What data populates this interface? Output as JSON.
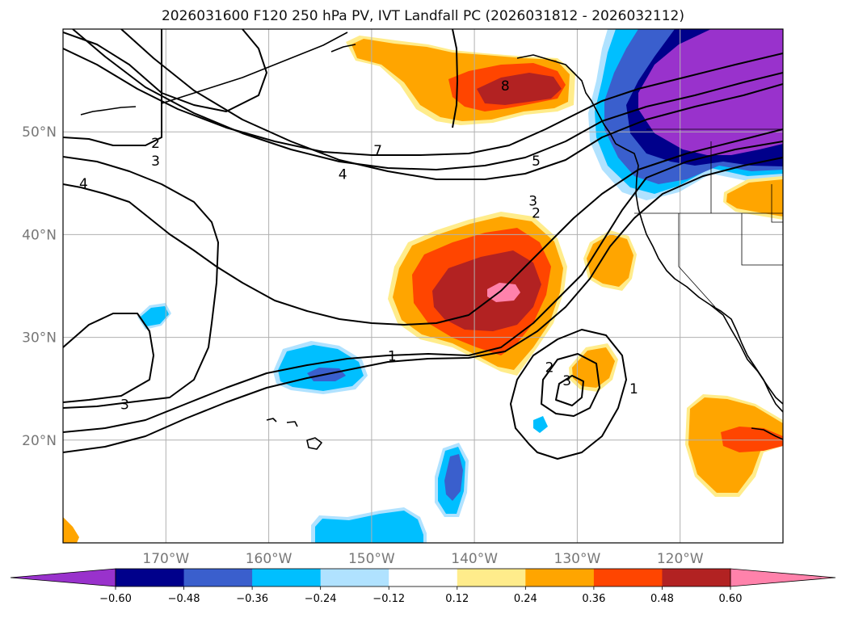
{
  "title": "2026031600 F120 250 hPa PV, IVT Landfall PC (2026031812 - 2026032112)",
  "map": {
    "lon_range": [
      -180,
      -110
    ],
    "lat_range": [
      10,
      60
    ],
    "lat_ticks": [
      {
        "value": 50,
        "label": "50°N"
      },
      {
        "value": 40,
        "label": "40°N"
      },
      {
        "value": 30,
        "label": "30°N"
      },
      {
        "value": 20,
        "label": "20°N"
      }
    ],
    "lon_ticks": [
      {
        "value": -170,
        "label": "170°W"
      },
      {
        "value": -160,
        "label": "160°W"
      },
      {
        "value": -150,
        "label": "150°W"
      },
      {
        "value": -140,
        "label": "140°W"
      },
      {
        "value": -130,
        "label": "130°W"
      },
      {
        "value": -120,
        "label": "120°W"
      }
    ],
    "grid": true,
    "contour_labels": [
      {
        "text": "8",
        "lon": -137.0,
        "lat": 54.5
      },
      {
        "text": "7",
        "lon": -149.4,
        "lat": 48.2
      },
      {
        "text": "5",
        "lon": -134.0,
        "lat": 47.2
      },
      {
        "text": "4",
        "lon": -152.8,
        "lat": 45.9
      },
      {
        "text": "3",
        "lon": -134.3,
        "lat": 43.3
      },
      {
        "text": "2",
        "lon": -134.0,
        "lat": 42.1
      },
      {
        "text": "2",
        "lon": -171.0,
        "lat": 48.9
      },
      {
        "text": "3",
        "lon": -171.0,
        "lat": 47.2
      },
      {
        "text": "4",
        "lon": -178.0,
        "lat": 45.0
      },
      {
        "text": "1",
        "lon": -148.0,
        "lat": 28.2
      },
      {
        "text": "3",
        "lon": -174.0,
        "lat": 23.5
      },
      {
        "text": "2",
        "lon": -132.7,
        "lat": 27.1
      },
      {
        "text": "3",
        "lon": -131.0,
        "lat": 25.8
      },
      {
        "text": "1",
        "lon": -124.5,
        "lat": 25.0
      }
    ]
  },
  "colorbar": {
    "levels": [
      -0.6,
      -0.48,
      -0.36,
      -0.24,
      -0.12,
      0.12,
      0.24,
      0.36,
      0.48,
      0.6
    ],
    "tick_labels": [
      "−0.60",
      "−0.48",
      "−0.36",
      "−0.24",
      "−0.12",
      "0.12",
      "0.24",
      "0.36",
      "0.48",
      "0.60"
    ],
    "colors": [
      "#9932cc",
      "#00008b",
      "#3a5fcd",
      "#00bfff",
      "#b0e2ff",
      "#ffffff",
      "#ffec8b",
      "#ffa500",
      "#ff4500",
      "#b22222",
      "#ff82ab"
    ],
    "extend": "both"
  }
}
